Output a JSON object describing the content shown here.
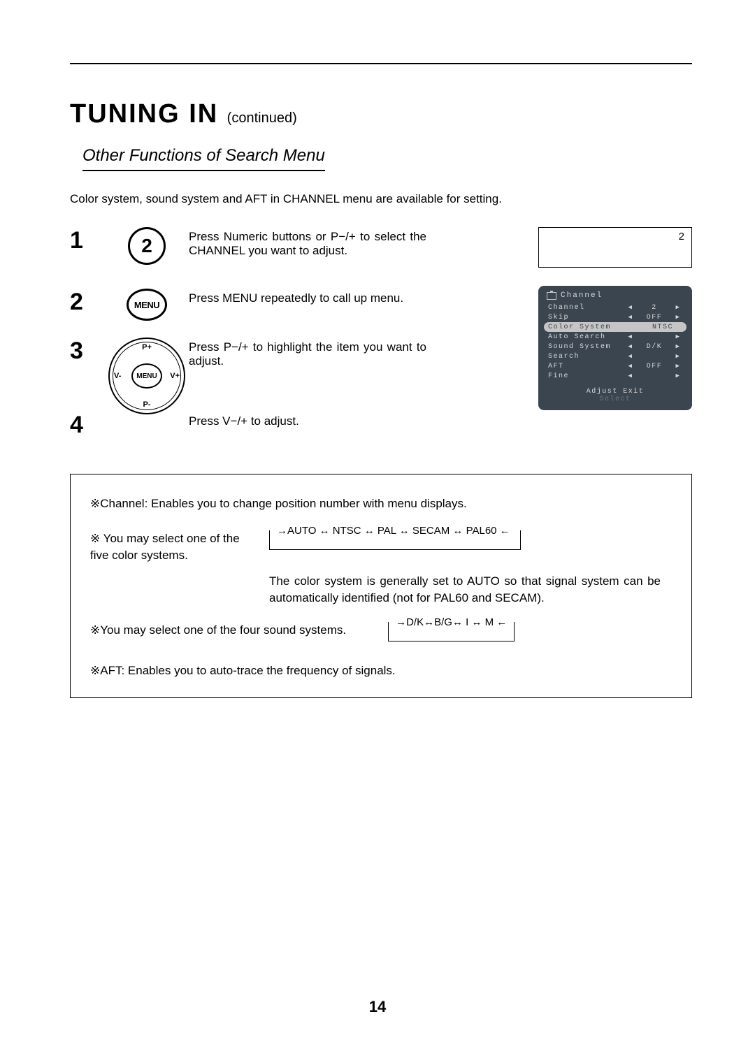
{
  "page_number": "14",
  "title": "TUNING IN",
  "title_suffix": "(continued)",
  "subtitle": "Other Functions of Search Menu",
  "intro": "Color system, sound system and AFT in CHANNEL menu are available for setting.",
  "steps": [
    {
      "num": "1",
      "text": "Press Numeric buttons or P−/+ to select the CHANNEL you want to adjust."
    },
    {
      "num": "2",
      "text": "Press MENU repeatedly to call up menu."
    },
    {
      "num": "3",
      "text": "Press P−/+ to highlight the item you want to adjust."
    },
    {
      "num": "4",
      "text": "Press V−/+ to adjust."
    }
  ],
  "icon_num": "2",
  "icon_menu": "MENU",
  "dpad": {
    "center": "MENU",
    "up": "P+",
    "down": "P-",
    "left": "V-",
    "right": "V+"
  },
  "osd_top_value": "2",
  "osd": {
    "title": "Channel",
    "rows": [
      {
        "label": "Channel",
        "val": "2",
        "pill": false,
        "hl": false,
        "arrows": true
      },
      {
        "label": "Skip",
        "val": "OFF",
        "pill": false,
        "hl": false,
        "arrows": true
      },
      {
        "label": "Color System",
        "val": "NTSC",
        "pill": true,
        "hl": true,
        "arrows": false
      },
      {
        "label": "Auto Search",
        "val": "",
        "pill": false,
        "hl": false,
        "arrows": true
      },
      {
        "label": "Sound System",
        "val": "D/K",
        "pill": false,
        "hl": false,
        "arrows": true
      },
      {
        "label": "Search",
        "val": "",
        "pill": false,
        "hl": false,
        "arrows": true
      },
      {
        "label": "AFT",
        "val": "OFF",
        "pill": false,
        "hl": false,
        "arrows": true
      },
      {
        "label": "Fine",
        "val": "",
        "pill": false,
        "hl": false,
        "arrows": true
      }
    ],
    "hint_top": "Adjust   Exit",
    "hint_bottom": "Select"
  },
  "notes": {
    "channel": "※Channel: Enables you to change position number with menu displays.",
    "color_left": "※ You may select one of the five color systems.",
    "color_cycle": "→AUTO ↔ NTSC ↔ PAL ↔ SECAM ↔ PAL60 ←",
    "color_desc": "The color system is generally set to AUTO so that signal system can be automatically identified (not for PAL60 and SECAM).",
    "sound_left": "※You may select one of the four sound systems.",
    "sound_cycle": "→D/K↔B/G↔ I ↔ M ←",
    "aft": "※AFT: Enables you to auto-trace the frequency of signals."
  },
  "colors": {
    "osd_bg": "#3a4550",
    "osd_fg": "#d8d8d8",
    "osd_hl_bg": "#c5c5c5",
    "osd_hl_fg": "#3a4550"
  }
}
